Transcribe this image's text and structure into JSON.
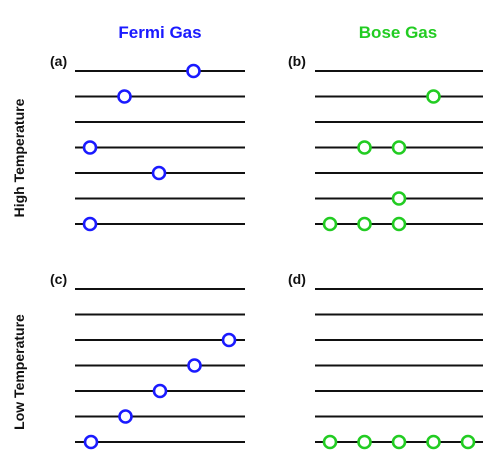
{
  "columns": {
    "fermi": {
      "title": "Fermi Gas",
      "color": "#1a1aff"
    },
    "bose": {
      "title": "Bose Gas",
      "color": "#22cc22"
    }
  },
  "rows": {
    "high": "High Temperature",
    "low": "Low Temperature"
  },
  "panels": [
    {
      "id": "a",
      "label": "(a)",
      "gas": "fermi",
      "levels": 7,
      "occupancy": [
        [
          4
        ],
        [
          2
        ],
        [],
        [
          1
        ],
        [
          3
        ],
        [],
        [
          1
        ]
      ]
    },
    {
      "id": "b",
      "label": "(b)",
      "gas": "bose",
      "levels": 7,
      "occupancy": [
        [],
        [
          4
        ],
        [],
        [
          2,
          3
        ],
        [],
        [
          3
        ],
        [
          1,
          2,
          3
        ]
      ]
    },
    {
      "id": "c",
      "label": "(c)",
      "gas": "fermi",
      "levels": 7,
      "occupancy": [
        [],
        [],
        [
          5
        ],
        [
          4
        ],
        [
          3
        ],
        [
          2
        ],
        [
          1
        ]
      ]
    },
    {
      "id": "d",
      "label": "(d)",
      "gas": "bose",
      "levels": 7,
      "occupancy": [
        [],
        [],
        [],
        [],
        [],
        [],
        [
          1,
          2,
          3,
          4,
          5
        ]
      ]
    }
  ]
}
